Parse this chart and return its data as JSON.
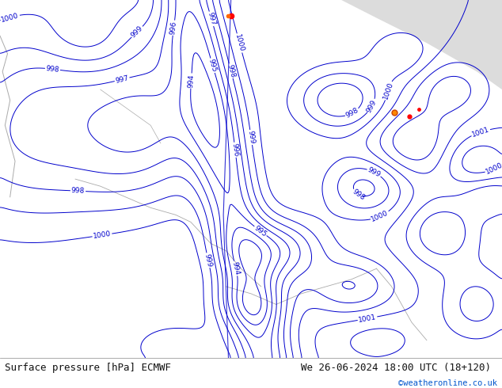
{
  "title_left": "Surface pressure [hPa] ECMWF",
  "title_right": "We 26-06-2024 18:00 UTC (18+120)",
  "copyright": "©weatheronline.co.uk",
  "bg_color": "#b8e896",
  "mountain_color": "#e8e8e8",
  "sea_color": "#d0eaff",
  "contour_color": "#0000cc",
  "gray_line_color": "#aaaaaa",
  "footer_bg": "#ffffff",
  "text_color_black": "#111111",
  "text_color_blue": "#0055cc",
  "figsize": [
    6.34,
    4.9
  ],
  "dpi": 100
}
